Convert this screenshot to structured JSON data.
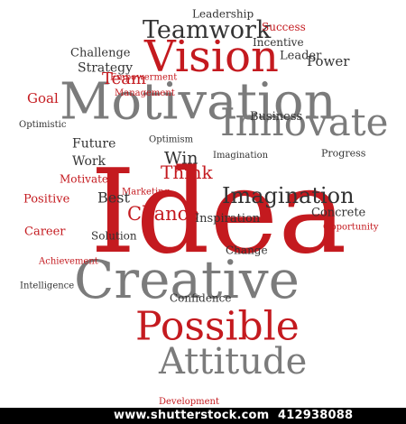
{
  "colors": {
    "red": "#c41a1f",
    "gray": "#7b7b7b",
    "dark": "#333333",
    "background": "#ffffff"
  },
  "cloud": {
    "words": [
      {
        "id": "idea-main",
        "text": "Idea"
      },
      {
        "id": "motivation",
        "text": "Motivation"
      },
      {
        "id": "creative-main",
        "text": "Creative"
      },
      {
        "id": "vision-main",
        "text": "Vision"
      },
      {
        "id": "innovate",
        "text": "Innovate"
      },
      {
        "id": "possible-main",
        "text": "Possible"
      },
      {
        "id": "attitude-main",
        "text": "Attitude"
      },
      {
        "id": "teamwork-top",
        "text": "Teamwork"
      },
      {
        "id": "imagination",
        "text": "Imagination"
      },
      {
        "id": "leadership-top",
        "text": "Leadership"
      },
      {
        "id": "chance",
        "text": "Chance"
      },
      {
        "id": "think",
        "text": "Think"
      },
      {
        "id": "best",
        "text": "Best"
      },
      {
        "id": "win",
        "text": "Win"
      },
      {
        "id": "team",
        "text": "Team"
      },
      {
        "id": "goal",
        "text": "Goal"
      },
      {
        "id": "success",
        "text": "Success"
      },
      {
        "id": "strategy",
        "text": "Strategy"
      },
      {
        "id": "future",
        "text": "Future"
      },
      {
        "id": "career",
        "text": "Career"
      },
      {
        "id": "power",
        "text": "Power"
      },
      {
        "id": "business",
        "text": "Business"
      },
      {
        "id": "solution",
        "text": "Solution"
      },
      {
        "id": "inspiration",
        "text": "Inspiration"
      },
      {
        "id": "confidence",
        "text": "Confidence"
      },
      {
        "id": "development",
        "text": "Development"
      },
      {
        "id": "achievement",
        "text": "Achievement"
      },
      {
        "id": "opportunity",
        "text": "Opportunity"
      },
      {
        "id": "positive",
        "text": "Positive"
      },
      {
        "id": "motivate",
        "text": "Motivate"
      },
      {
        "id": "work",
        "text": "Work"
      },
      {
        "id": "leader",
        "text": "Leader"
      },
      {
        "id": "concrete",
        "text": "Concrete"
      },
      {
        "id": "challenge",
        "text": "Challenge"
      },
      {
        "id": "progress",
        "text": "Progress"
      },
      {
        "id": "intelligence",
        "text": "Intelligence"
      },
      {
        "id": "optimism",
        "text": "Optimism"
      },
      {
        "id": "marketing",
        "text": "Marketing"
      },
      {
        "id": "empowerment",
        "text": "Empowerment"
      },
      {
        "id": "management",
        "text": "Management"
      },
      {
        "id": "incentive",
        "text": "Incentive"
      },
      {
        "id": "change",
        "text": "Change"
      },
      {
        "id": "imagination-small",
        "text": "Imagination"
      },
      {
        "id": "optimistic",
        "text": "Optimistic"
      }
    ]
  },
  "stock": {
    "site": "www.shutterstock.com",
    "id": "412938088"
  }
}
